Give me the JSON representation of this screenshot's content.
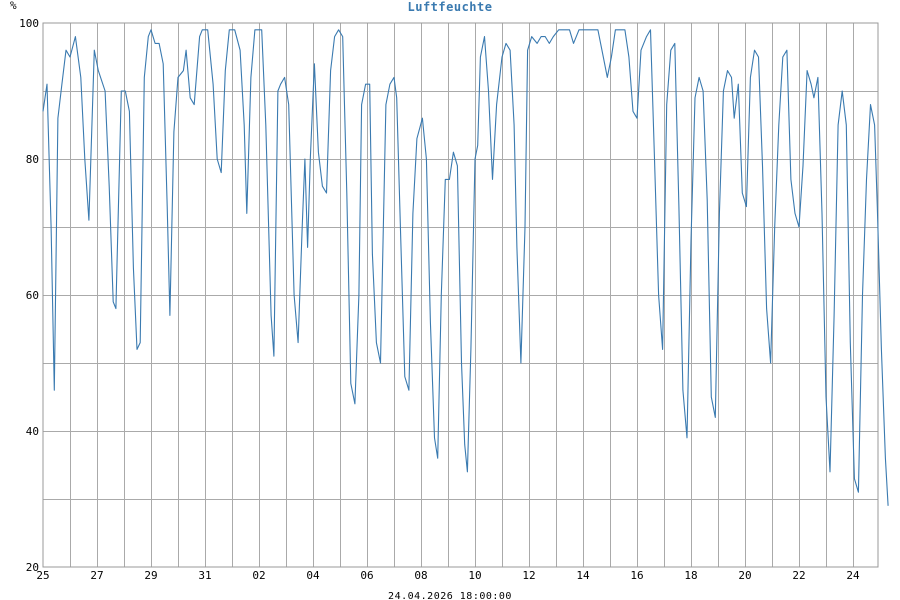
{
  "chart_data": {
    "type": "line",
    "title": "Luftfeuchte",
    "unit_label": "%",
    "footer": "24.04.2026 18:00:00",
    "ylim": [
      20,
      100
    ],
    "y_ticks": [
      20,
      40,
      60,
      80,
      100
    ],
    "y_minor_grid": [
      30,
      50,
      70,
      90
    ],
    "xlim": [
      0,
      30.9
    ],
    "x_ticks": [
      {
        "label": "25",
        "pos": 0
      },
      {
        "label": "27",
        "pos": 2
      },
      {
        "label": "29",
        "pos": 4
      },
      {
        "label": "31",
        "pos": 6
      },
      {
        "label": "02",
        "pos": 8
      },
      {
        "label": "04",
        "pos": 10
      },
      {
        "label": "06",
        "pos": 12
      },
      {
        "label": "08",
        "pos": 14
      },
      {
        "label": "10",
        "pos": 16
      },
      {
        "label": "12",
        "pos": 18
      },
      {
        "label": "14",
        "pos": 20
      },
      {
        "label": "16",
        "pos": 22
      },
      {
        "label": "18",
        "pos": 24
      },
      {
        "label": "20",
        "pos": 26
      },
      {
        "label": "22",
        "pos": 28
      },
      {
        "label": "24",
        "pos": 30
      }
    ],
    "grid": true,
    "line_color": "#3a7ab0",
    "series": [
      {
        "values": [
          [
            0.0,
            87
          ],
          [
            0.15,
            91
          ],
          [
            0.3,
            70
          ],
          [
            0.42,
            46
          ],
          [
            0.55,
            86
          ],
          [
            0.7,
            91
          ],
          [
            0.85,
            96
          ],
          [
            1.0,
            95
          ],
          [
            1.2,
            98
          ],
          [
            1.4,
            92
          ],
          [
            1.55,
            80
          ],
          [
            1.7,
            71
          ],
          [
            1.9,
            96
          ],
          [
            2.05,
            93
          ],
          [
            2.3,
            90
          ],
          [
            2.45,
            76
          ],
          [
            2.6,
            59
          ],
          [
            2.7,
            58
          ],
          [
            2.9,
            90
          ],
          [
            3.05,
            90
          ],
          [
            3.2,
            87
          ],
          [
            3.35,
            64
          ],
          [
            3.48,
            52
          ],
          [
            3.6,
            53
          ],
          [
            3.75,
            92
          ],
          [
            3.9,
            98
          ],
          [
            4.0,
            99
          ],
          [
            4.15,
            97
          ],
          [
            4.3,
            97
          ],
          [
            4.45,
            94
          ],
          [
            4.6,
            73
          ],
          [
            4.7,
            57
          ],
          [
            4.85,
            84
          ],
          [
            5.0,
            92
          ],
          [
            5.2,
            93
          ],
          [
            5.3,
            96
          ],
          [
            5.45,
            89
          ],
          [
            5.6,
            88
          ],
          [
            5.8,
            98
          ],
          [
            5.9,
            99
          ],
          [
            6.1,
            99
          ],
          [
            6.3,
            91
          ],
          [
            6.45,
            80
          ],
          [
            6.6,
            78
          ],
          [
            6.75,
            93
          ],
          [
            6.9,
            99
          ],
          [
            7.1,
            99
          ],
          [
            7.3,
            96
          ],
          [
            7.45,
            85
          ],
          [
            7.55,
            72
          ],
          [
            7.7,
            92
          ],
          [
            7.85,
            99
          ],
          [
            8.1,
            99
          ],
          [
            8.25,
            85
          ],
          [
            8.45,
            57
          ],
          [
            8.55,
            51
          ],
          [
            8.7,
            90
          ],
          [
            8.8,
            91
          ],
          [
            8.95,
            92
          ],
          [
            9.1,
            88
          ],
          [
            9.3,
            60
          ],
          [
            9.45,
            53
          ],
          [
            9.6,
            70
          ],
          [
            9.7,
            80
          ],
          [
            9.8,
            67
          ],
          [
            9.9,
            80
          ],
          [
            10.05,
            94
          ],
          [
            10.2,
            81
          ],
          [
            10.35,
            76
          ],
          [
            10.5,
            75
          ],
          [
            10.65,
            93
          ],
          [
            10.8,
            98
          ],
          [
            10.95,
            99
          ],
          [
            11.1,
            98
          ],
          [
            11.25,
            75
          ],
          [
            11.4,
            47
          ],
          [
            11.55,
            44
          ],
          [
            11.7,
            60
          ],
          [
            11.8,
            88
          ],
          [
            11.95,
            91
          ],
          [
            12.1,
            91
          ],
          [
            12.2,
            66
          ],
          [
            12.35,
            53
          ],
          [
            12.5,
            50
          ],
          [
            12.7,
            88
          ],
          [
            12.85,
            91
          ],
          [
            13.0,
            92
          ],
          [
            13.1,
            89
          ],
          [
            13.25,
            68
          ],
          [
            13.4,
            48
          ],
          [
            13.55,
            46
          ],
          [
            13.7,
            72
          ],
          [
            13.85,
            83
          ],
          [
            14.05,
            86
          ],
          [
            14.2,
            80
          ],
          [
            14.35,
            56
          ],
          [
            14.5,
            39
          ],
          [
            14.62,
            36
          ],
          [
            14.75,
            60
          ],
          [
            14.9,
            77
          ],
          [
            15.05,
            77
          ],
          [
            15.2,
            81
          ],
          [
            15.35,
            79
          ],
          [
            15.5,
            50
          ],
          [
            15.62,
            38
          ],
          [
            15.72,
            34
          ],
          [
            15.85,
            52
          ],
          [
            16.0,
            80
          ],
          [
            16.1,
            82
          ],
          [
            16.2,
            95
          ],
          [
            16.35,
            98
          ],
          [
            16.5,
            90
          ],
          [
            16.65,
            77
          ],
          [
            16.8,
            88
          ],
          [
            17.0,
            95
          ],
          [
            17.15,
            97
          ],
          [
            17.3,
            96
          ],
          [
            17.45,
            85
          ],
          [
            17.55,
            67
          ],
          [
            17.7,
            50
          ],
          [
            17.85,
            70
          ],
          [
            17.95,
            96
          ],
          [
            18.1,
            98
          ],
          [
            18.3,
            97
          ],
          [
            18.45,
            98
          ],
          [
            18.6,
            98
          ],
          [
            18.75,
            97
          ],
          [
            18.9,
            98
          ],
          [
            19.1,
            99
          ],
          [
            19.3,
            99
          ],
          [
            19.5,
            99
          ],
          [
            19.65,
            97
          ],
          [
            19.85,
            99
          ],
          [
            20.05,
            99
          ],
          [
            20.3,
            99
          ],
          [
            20.55,
            99
          ],
          [
            20.75,
            95
          ],
          [
            20.9,
            92
          ],
          [
            21.05,
            95
          ],
          [
            21.2,
            99
          ],
          [
            21.35,
            99
          ],
          [
            21.55,
            99
          ],
          [
            21.7,
            95
          ],
          [
            21.85,
            87
          ],
          [
            22.0,
            86
          ],
          [
            22.15,
            96
          ],
          [
            22.35,
            98
          ],
          [
            22.5,
            99
          ],
          [
            22.65,
            80
          ],
          [
            22.8,
            60
          ],
          [
            22.95,
            52
          ],
          [
            23.1,
            88
          ],
          [
            23.25,
            96
          ],
          [
            23.4,
            97
          ],
          [
            23.55,
            73
          ],
          [
            23.7,
            46
          ],
          [
            23.85,
            39
          ],
          [
            24.0,
            68
          ],
          [
            24.15,
            89
          ],
          [
            24.3,
            92
          ],
          [
            24.45,
            90
          ],
          [
            24.6,
            74
          ],
          [
            24.75,
            45
          ],
          [
            24.9,
            42
          ],
          [
            25.05,
            72
          ],
          [
            25.2,
            90
          ],
          [
            25.35,
            93
          ],
          [
            25.5,
            92
          ],
          [
            25.6,
            86
          ],
          [
            25.75,
            91
          ],
          [
            25.9,
            75
          ],
          [
            26.05,
            73
          ],
          [
            26.2,
            92
          ],
          [
            26.35,
            96
          ],
          [
            26.5,
            95
          ],
          [
            26.65,
            79
          ],
          [
            26.8,
            58
          ],
          [
            26.95,
            50
          ],
          [
            27.1,
            70
          ],
          [
            27.25,
            85
          ],
          [
            27.4,
            95
          ],
          [
            27.55,
            96
          ],
          [
            27.7,
            77
          ],
          [
            27.85,
            72
          ],
          [
            28.0,
            70
          ],
          [
            28.15,
            79
          ],
          [
            28.3,
            93
          ],
          [
            28.45,
            91
          ],
          [
            28.55,
            89
          ],
          [
            28.7,
            92
          ],
          [
            28.85,
            72
          ],
          [
            29.0,
            45
          ],
          [
            29.15,
            34
          ],
          [
            29.3,
            57
          ],
          [
            29.45,
            85
          ],
          [
            29.6,
            90
          ],
          [
            29.75,
            85
          ],
          [
            29.9,
            53
          ],
          [
            30.05,
            33
          ],
          [
            30.2,
            31
          ],
          [
            30.35,
            60
          ],
          [
            30.5,
            77
          ],
          [
            30.65,
            88
          ],
          [
            30.8,
            85
          ],
          [
            30.9,
            73
          ],
          [
            31.05,
            52
          ],
          [
            31.2,
            36
          ],
          [
            31.3,
            29
          ]
        ]
      }
    ]
  }
}
